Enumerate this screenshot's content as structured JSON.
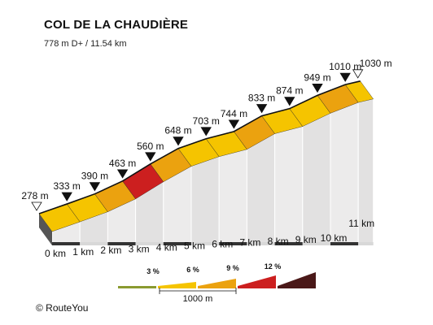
{
  "title": "COL DE LA CHAUDIÈRE",
  "subtitle": "778 m D+ / 11.54 km",
  "copyright": "© RouteYou",
  "chart_data": {
    "type": "area",
    "x": [
      0,
      1,
      2,
      3,
      4,
      5,
      6,
      7,
      8,
      9,
      10,
      11,
      11.54
    ],
    "altitudes": [
      278,
      333,
      390,
      463,
      560,
      648,
      703,
      744,
      833,
      874,
      949,
      1010,
      1030
    ],
    "altitude_labels": [
      "278 m",
      "333 m",
      "390 m",
      "463 m",
      "560 m",
      "648 m",
      "703 m",
      "744 m",
      "833 m",
      "874 m",
      "949 m",
      "1010 m",
      "1030 m"
    ],
    "km_labels": [
      "0 km",
      "1 km",
      "2 km",
      "3 km",
      "4 km",
      "5 km",
      "6 km",
      "7 km",
      "8 km",
      "9 km",
      "10 km",
      "11 km"
    ],
    "segment_grade_colors": [
      "#f5c400",
      "#f5c400",
      "#eba20f",
      "#cc1f1f",
      "#eba20f",
      "#f5c400",
      "#f5c400",
      "#eba20f",
      "#f5c400",
      "#f5c400",
      "#eba20f",
      "#f5c400",
      "#f5c400"
    ],
    "legend": {
      "grades": [
        "3 %",
        "6 %",
        "9 %",
        "12 %"
      ],
      "colors": [
        "#8a9a30",
        "#f5c400",
        "#eba20f",
        "#cc1f1f",
        "#4a1818"
      ],
      "scale_label": "1000 m"
    }
  }
}
